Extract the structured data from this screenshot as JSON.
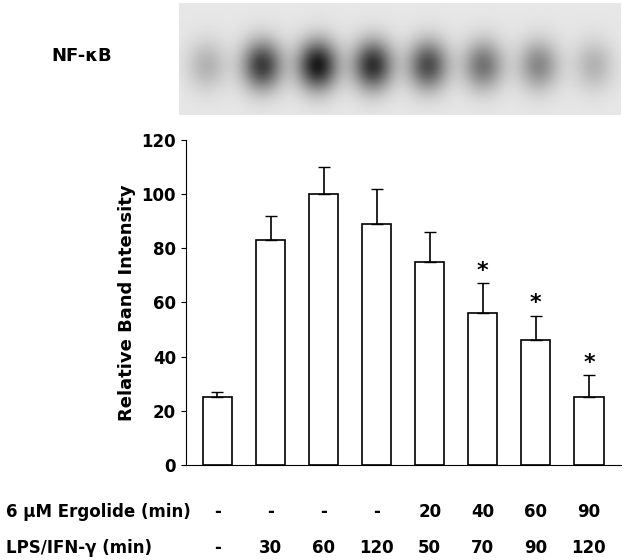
{
  "chart_data": {
    "type": "bar",
    "gel_label": "NF-κB",
    "y_label": "Relative Band Intensity",
    "categories": [
      null,
      null,
      null,
      null,
      null,
      null,
      null,
      null
    ],
    "values": [
      25,
      83,
      100,
      89,
      75,
      56,
      46,
      25
    ],
    "errors": [
      2,
      9,
      10,
      13,
      11,
      11,
      9,
      8
    ],
    "color": "#ffffff",
    "ylim": [
      0,
      120
    ],
    "yticks": [
      0,
      20,
      40,
      60,
      80,
      100,
      120
    ],
    "grid": false,
    "annotations": [
      {
        "category_index": 5,
        "text": "*"
      },
      {
        "category_index": 6,
        "text": "*"
      },
      {
        "category_index": 7,
        "text": "*"
      }
    ],
    "treatments": [
      {
        "label": "6 µM Ergolide (min)",
        "values": [
          "-",
          "-",
          "-",
          "-",
          "20",
          "40",
          "60",
          "90"
        ]
      },
      {
        "label": "LPS/IFN-γ (min)",
        "values": [
          "-",
          "30",
          "60",
          "120",
          "50",
          "70",
          "90",
          "120"
        ]
      }
    ]
  }
}
